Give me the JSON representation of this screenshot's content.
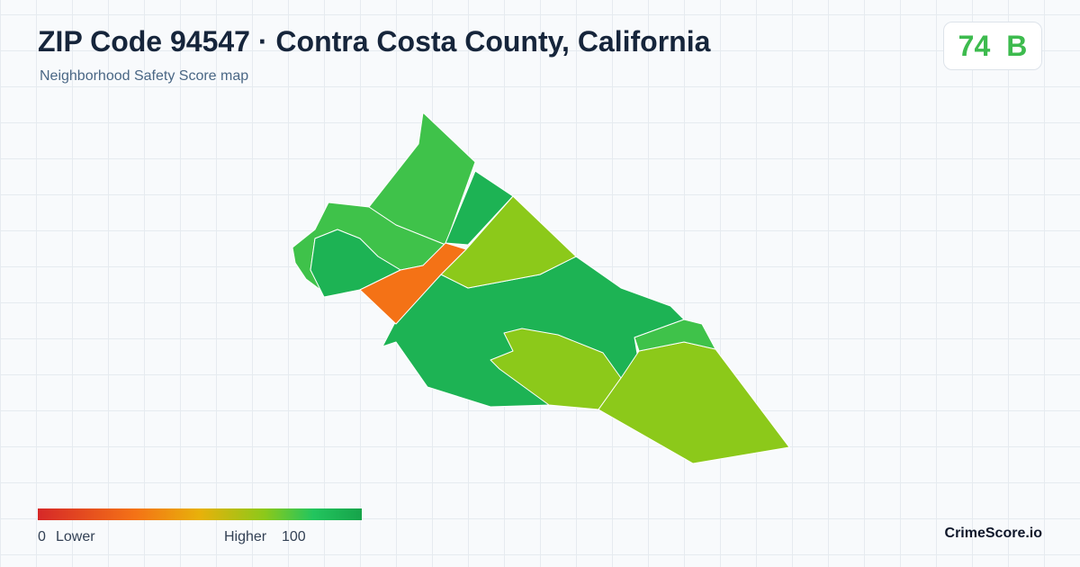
{
  "header": {
    "title": "ZIP Code 94547 · Contra Costa County, California",
    "subtitle": "Neighborhood Safety Score map"
  },
  "score": {
    "value": 74,
    "grade": "B"
  },
  "legend": {
    "min": 0,
    "max": 100,
    "low_label": "Lower",
    "high_label": "Higher"
  },
  "brand": "CrimeScore.io"
}
